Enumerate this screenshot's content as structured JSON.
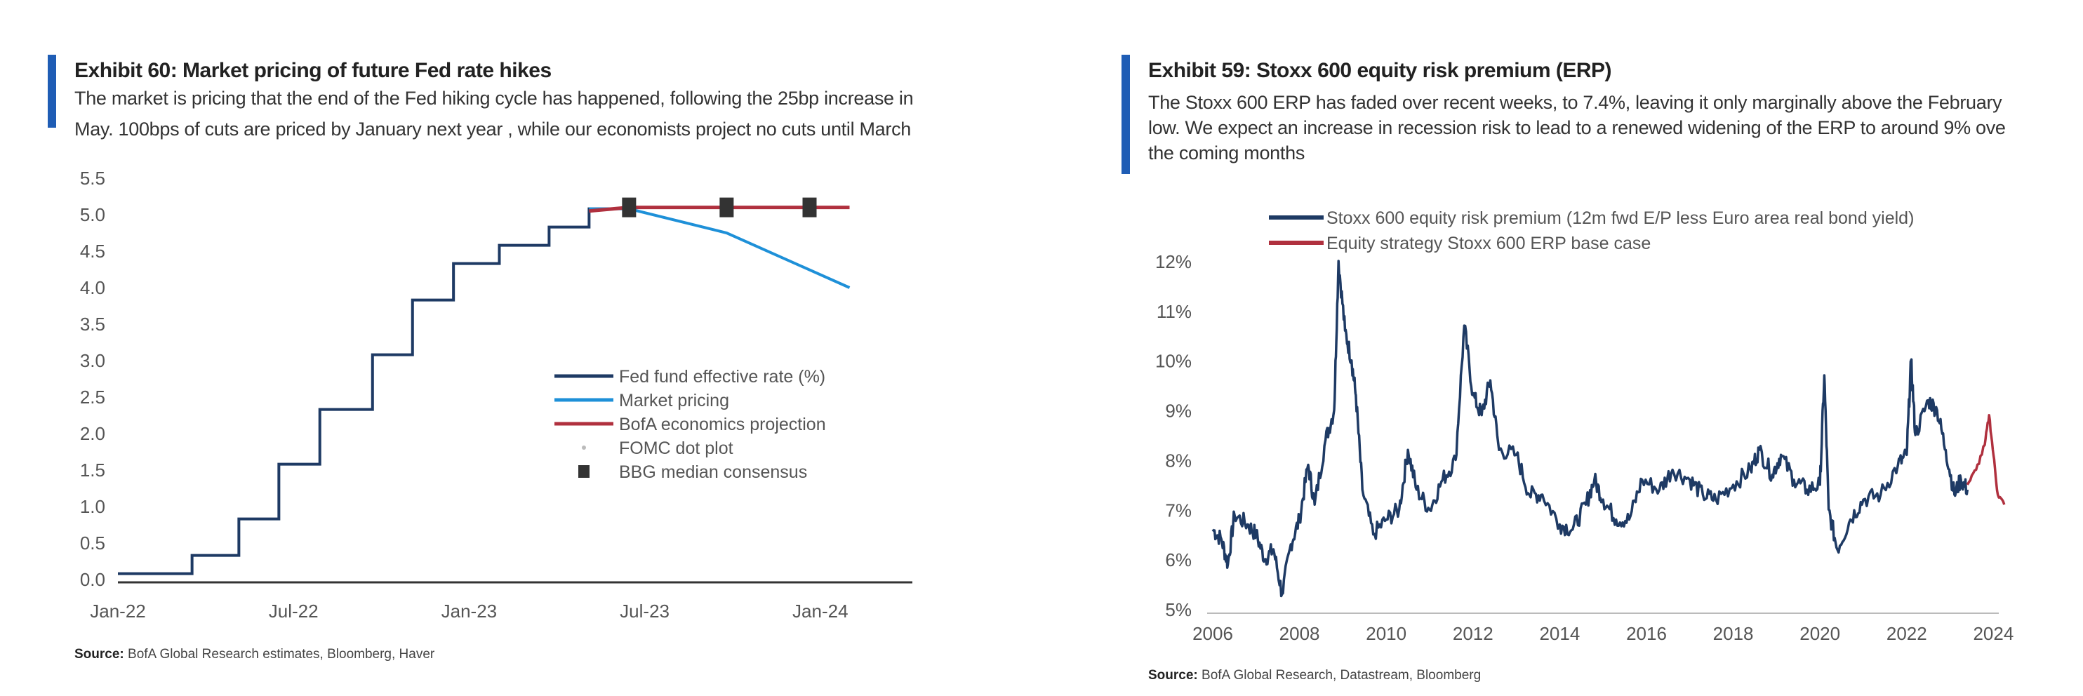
{
  "left": {
    "title": "Exhibit 60: Market pricing of future Fed rate hikes",
    "subtitle_lines": [
      "The market is pricing that the end of the Fed hiking cycle has happened, following the 25bp increase in",
      "May. 100bps of cuts are priced by January next year , while our economists project no cuts until March"
    ],
    "source_label": "Source:",
    "source_text": "BofA Global Research estimates, Bloomberg, Haver"
  },
  "right": {
    "title": "Exhibit 59: Stoxx 600 equity risk premium (ERP)",
    "subtitle_lines": [
      "The Stoxx 600 ERP has faded over recent weeks, to 7.4%, leaving it only marginally above the February",
      "low. We expect an increase in recession risk to lead to a renewed widening of the ERP to around 9% ove",
      "the coming months"
    ],
    "source_label": "Source:",
    "source_text": "BofA Global Research, Datastream, Bloomberg"
  },
  "chart_data": [
    {
      "type": "line",
      "title": "Exhibit 60: Market pricing of future Fed rate hikes",
      "ylim": [
        0,
        5.5
      ],
      "yticks": [
        "0.0",
        "0.5",
        "1.0",
        "1.5",
        "2.0",
        "2.5",
        "3.0",
        "3.5",
        "4.0",
        "4.5",
        "5.0",
        "5.5"
      ],
      "xticks": [
        "Jan-22",
        "Jul-22",
        "Jan-23",
        "Jul-23",
        "Jan-24"
      ],
      "x_unit": "months since Jan-22 as shown by tick labels",
      "legend_position": "center-right",
      "grid": false,
      "series": [
        {
          "name": "Fed fund effective rate (%)",
          "color": "#1e3a64",
          "style": "step",
          "points": [
            [
              "2022-01",
              0.08
            ],
            [
              "2022-03-17",
              0.33
            ],
            [
              "2022-05-05",
              0.83
            ],
            [
              "2022-06-16",
              1.58
            ],
            [
              "2022-07-28",
              2.33
            ],
            [
              "2022-09-22",
              3.08
            ],
            [
              "2022-11-03",
              3.83
            ],
            [
              "2022-12-15",
              4.33
            ],
            [
              "2023-02-02",
              4.58
            ],
            [
              "2023-03-23",
              4.83
            ],
            [
              "2023-05-04",
              5.08
            ],
            [
              "2023-06-01",
              5.08
            ]
          ]
        },
        {
          "name": "Market pricing",
          "color": "#1e90d8",
          "points": [
            [
              "2023-05-04",
              5.08
            ],
            [
              "2023-06-15",
              5.08
            ],
            [
              "2023-09-25",
              4.75
            ],
            [
              "2024-02-01",
              4.0
            ]
          ]
        },
        {
          "name": "BofA economics projection",
          "color": "#b0303e",
          "points": [
            [
              "2023-05-04",
              5.05
            ],
            [
              "2023-06-15",
              5.1
            ],
            [
              "2024-02-01",
              5.1
            ]
          ]
        },
        {
          "name": "FOMC dot plot",
          "color": "#bbbbbb",
          "points": []
        },
        {
          "name": "BBG median consensus",
          "color": "#333333",
          "marker": "square",
          "points": [
            [
              "2023-06-15",
              5.1
            ],
            [
              "2023-09-25",
              5.1
            ],
            [
              "2023-12-20",
              5.1
            ]
          ]
        }
      ]
    },
    {
      "type": "line",
      "title": "Exhibit 59: Stoxx 600 equity risk premium (ERP)",
      "ylim": [
        5,
        12
      ],
      "yticks": [
        "5%",
        "6%",
        "7%",
        "8%",
        "9%",
        "10%",
        "11%",
        "12%"
      ],
      "xlim": [
        2006,
        2024.4
      ],
      "xticks": [
        "2006",
        "2008",
        "2010",
        "2012",
        "2014",
        "2016",
        "2018",
        "2020",
        "2022",
        "2024"
      ],
      "legend_position": "top",
      "grid": false,
      "series": [
        {
          "name": "Stoxx 600 equity risk premium (12m fwd E/P less Euro area real bond yield)",
          "color": "#1e3a64",
          "points": [
            [
              2006.0,
              6.6
            ],
            [
              2006.2,
              6.4
            ],
            [
              2006.35,
              5.9
            ],
            [
              2006.5,
              6.9
            ],
            [
              2006.8,
              6.7
            ],
            [
              2007.0,
              6.5
            ],
            [
              2007.2,
              6.0
            ],
            [
              2007.4,
              6.2
            ],
            [
              2007.6,
              5.3
            ],
            [
              2007.8,
              6.3
            ],
            [
              2008.0,
              6.8
            ],
            [
              2008.2,
              7.9
            ],
            [
              2008.35,
              7.1
            ],
            [
              2008.6,
              8.4
            ],
            [
              2008.8,
              9.0
            ],
            [
              2008.9,
              12.0
            ],
            [
              2009.05,
              10.6
            ],
            [
              2009.2,
              10.0
            ],
            [
              2009.3,
              9.3
            ],
            [
              2009.45,
              7.4
            ],
            [
              2009.7,
              6.5
            ],
            [
              2010.0,
              6.8
            ],
            [
              2010.3,
              7.0
            ],
            [
              2010.5,
              8.2
            ],
            [
              2010.7,
              7.4
            ],
            [
              2011.0,
              7.0
            ],
            [
              2011.3,
              7.6
            ],
            [
              2011.6,
              8.0
            ],
            [
              2011.8,
              10.7
            ],
            [
              2012.0,
              9.3
            ],
            [
              2012.2,
              8.9
            ],
            [
              2012.4,
              9.6
            ],
            [
              2012.6,
              8.2
            ],
            [
              2013.0,
              8.1
            ],
            [
              2013.3,
              7.3
            ],
            [
              2013.6,
              7.3
            ],
            [
              2014.0,
              6.7
            ],
            [
              2014.3,
              6.6
            ],
            [
              2014.6,
              7.1
            ],
            [
              2014.8,
              7.6
            ],
            [
              2015.0,
              7.2
            ],
            [
              2015.3,
              6.8
            ],
            [
              2015.6,
              6.8
            ],
            [
              2015.9,
              7.6
            ],
            [
              2016.3,
              7.4
            ],
            [
              2016.6,
              7.8
            ],
            [
              2017.0,
              7.6
            ],
            [
              2017.3,
              7.3
            ],
            [
              2017.6,
              7.2
            ],
            [
              2018.0,
              7.5
            ],
            [
              2018.4,
              7.8
            ],
            [
              2018.6,
              8.2
            ],
            [
              2018.9,
              7.7
            ],
            [
              2019.1,
              8.1
            ],
            [
              2019.4,
              7.6
            ],
            [
              2019.7,
              7.4
            ],
            [
              2020.0,
              7.5
            ],
            [
              2020.1,
              9.7
            ],
            [
              2020.2,
              7.0
            ],
            [
              2020.4,
              6.2
            ],
            [
              2020.7,
              6.8
            ],
            [
              2021.0,
              7.2
            ],
            [
              2021.4,
              7.3
            ],
            [
              2021.8,
              7.9
            ],
            [
              2022.0,
              8.1
            ],
            [
              2022.1,
              10.0
            ],
            [
              2022.2,
              8.5
            ],
            [
              2022.5,
              9.2
            ],
            [
              2022.7,
              9.0
            ],
            [
              2022.9,
              8.2
            ],
            [
              2023.1,
              7.3
            ],
            [
              2023.25,
              7.6
            ],
            [
              2023.4,
              7.4
            ]
          ]
        },
        {
          "name": "Equity strategy Stoxx 600 ERP base case",
          "color": "#b0303e",
          "points": [
            [
              2023.4,
              7.5
            ],
            [
              2023.6,
              7.8
            ],
            [
              2023.8,
              8.3
            ],
            [
              2023.9,
              8.9
            ],
            [
              2024.0,
              8.1
            ],
            [
              2024.1,
              7.3
            ],
            [
              2024.25,
              7.1
            ]
          ]
        }
      ]
    }
  ]
}
